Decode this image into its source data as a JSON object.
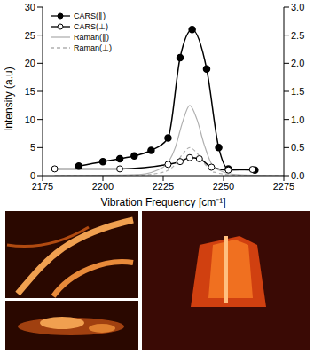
{
  "chart_data": {
    "type": "line",
    "xlabel": "Vibration Frequency [cm⁻¹]",
    "ylabel": "Intensity (a.u)",
    "xlim": [
      2175,
      2275
    ],
    "xticks": [
      2175,
      2200,
      2225,
      2250,
      2275
    ],
    "ylim": [
      0,
      30
    ],
    "yticks": [
      0,
      5,
      10,
      15,
      20,
      25,
      30
    ],
    "y2lim": [
      0,
      3
    ],
    "y2ticks": [
      {
        "value": 0,
        "label": "0.0"
      },
      0.5,
      {
        "value": 1,
        "label": "1.0"
      },
      1.5,
      {
        "value": 2,
        "label": "2.0"
      },
      2.5,
      {
        "value": 3,
        "label": "3.0"
      }
    ],
    "legend": "upper left",
    "series": [
      {
        "name": "CARS(∥)",
        "color": "#000000",
        "marker": "filled_circle",
        "line_style": "solid",
        "x": [
          2190,
          2200,
          2207,
          2213,
          2220,
          2227,
          2232,
          2237,
          2243,
          2248,
          2252,
          2263
        ],
        "values": [
          1.7,
          2.5,
          3,
          3.5,
          4.5,
          6.7,
          21,
          26,
          19,
          5,
          1.2,
          1.0
        ]
      },
      {
        "name": "CARS(⊥)",
        "color": "#000000",
        "marker": "open_circle",
        "line_style": "solid",
        "x": [
          2180,
          2207,
          2227,
          2232,
          2236,
          2240,
          2245,
          2252,
          2262
        ],
        "values": [
          1.2,
          1.2,
          2,
          2.5,
          3.2,
          3,
          1.5,
          1,
          1.1
        ]
      },
      {
        "name": "Raman(∥)",
        "color": "#b0b0b0",
        "marker": "none",
        "line_style": "solid",
        "axis": "y2",
        "x": [
          2180,
          2215,
          2225,
          2230,
          2233,
          2236,
          2239,
          2242,
          2246,
          2255,
          2275
        ],
        "values": [
          0,
          0.02,
          0.15,
          0.5,
          0.95,
          1.25,
          1.0,
          0.55,
          0.15,
          0.02,
          0
        ]
      },
      {
        "name": "Raman(⊥)",
        "color": "#b0b0b0",
        "marker": "none",
        "line_style": "dashed",
        "axis": "y2",
        "x": [
          2180,
          2215,
          2225,
          2230,
          2233,
          2236,
          2239,
          2242,
          2246,
          2255,
          2275
        ],
        "values": [
          0,
          0.01,
          0.06,
          0.2,
          0.38,
          0.5,
          0.4,
          0.22,
          0.06,
          0.01,
          0
        ]
      }
    ]
  }
}
